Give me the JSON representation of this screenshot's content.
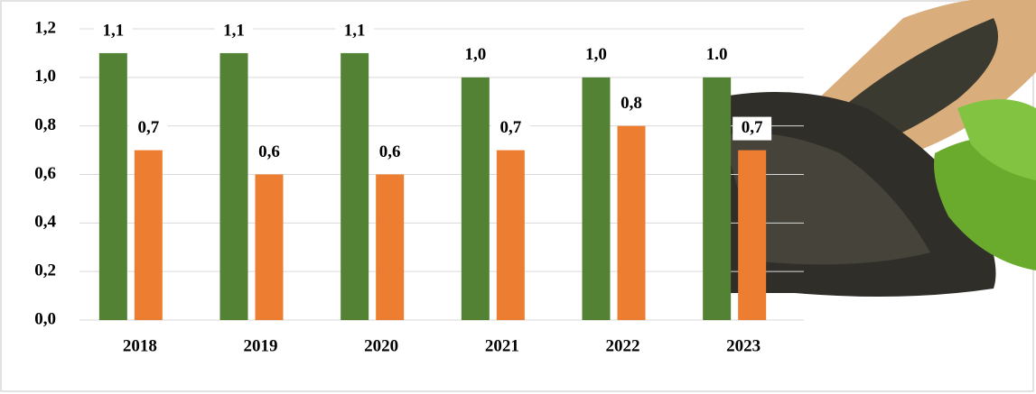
{
  "chart_data": {
    "type": "bar",
    "categories": [
      "2018",
      "2019",
      "2020",
      "2021",
      "2022",
      "2023"
    ],
    "series": [
      {
        "color": "#548235",
        "values": [
          1.1,
          1.1,
          1.1,
          1.0,
          1.0,
          1.0
        ],
        "value_labels": [
          "1,1",
          "1,1",
          "1,1",
          "1,0",
          "1,0",
          "1.0"
        ]
      },
      {
        "color": "#ed7d31",
        "values": [
          0.7,
          0.6,
          0.6,
          0.7,
          0.8,
          0.7
        ],
        "value_labels": [
          "0,7",
          "0,6",
          "0,6",
          "0,7",
          "0,8",
          "0,7"
        ]
      }
    ],
    "ylim": [
      0,
      1.2
    ],
    "yticks": [
      {
        "value": 0,
        "label": "0,0"
      },
      {
        "value": 0.2,
        "label": "0,2"
      },
      {
        "value": 0.4,
        "label": "0,4"
      },
      {
        "value": 0.6,
        "label": "0,6"
      },
      {
        "value": 0.8,
        "label": "0,8"
      },
      {
        "value": 1.0,
        "label": "1,0"
      },
      {
        "value": 1.2,
        "label": "1,2"
      }
    ],
    "grid": true
  }
}
